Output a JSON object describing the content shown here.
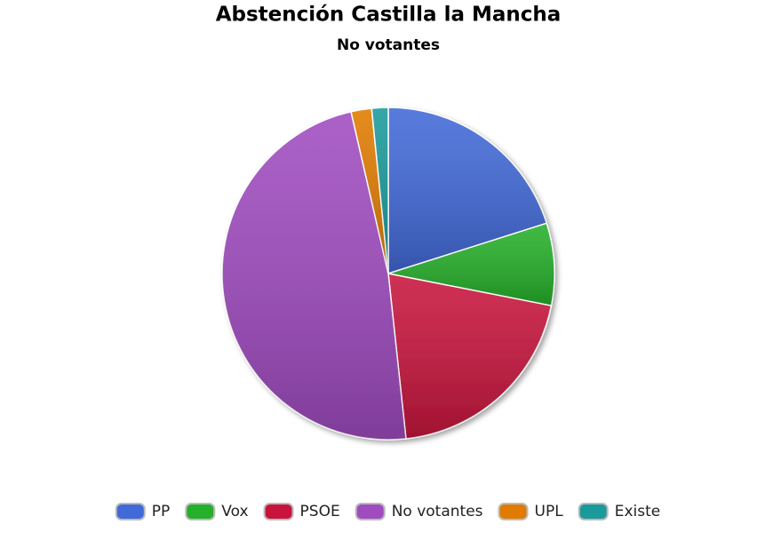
{
  "chart_data": {
    "type": "pie",
    "title": "Abstención Castilla la Mancha",
    "subtitle": "No votantes",
    "categories": [
      "PP",
      "Vox",
      "PSOE",
      "No votantes",
      "UPL",
      "Existe"
    ],
    "values": [
      20.1,
      8,
      20.2,
      48.1,
      2,
      1.6
    ],
    "colors": [
      "#4169d8",
      "#25b02a",
      "#c8143c",
      "#a04bc0",
      "#e07b00",
      "#1a9a9a"
    ],
    "legend": "bottom"
  }
}
